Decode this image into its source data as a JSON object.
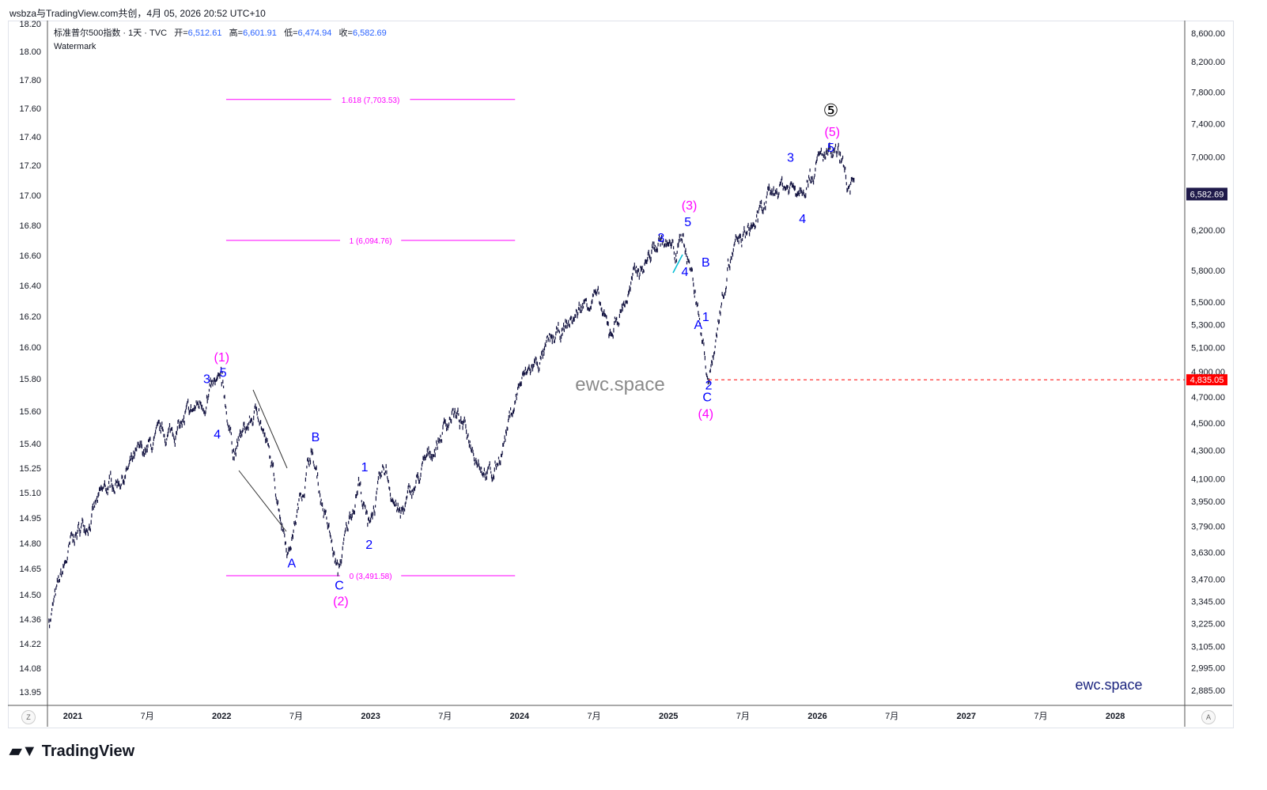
{
  "header": {
    "share_text": "wsbza与TradingView.com共创，4月 05, 2026 20:52 UTC+10"
  },
  "legend": {
    "symbol": "标准普尔500指数 · 1天 · TVC",
    "open_label": "开=",
    "open": "6,512.61",
    "high_label": "高=",
    "high": "6,601.91",
    "low_label": "低=",
    "low": "6,474.94",
    "close_label": "收=",
    "close": "6,582.69",
    "watermark_label": "Watermark"
  },
  "buttons": {
    "z": "Z",
    "a": "A"
  },
  "brand": "TradingView",
  "colors": {
    "candle": "#131340",
    "wave_blue": "#0000ff",
    "wave_magenta": "#ff00ff",
    "red": "#ff0000",
    "price_tag": "#1f1a4a"
  },
  "chart_data": {
    "type": "line",
    "title": "标准普尔500指数 · 1天 · TVC",
    "y_scale": "log",
    "ylim": [
      2800,
      8900
    ],
    "x_ticks": [
      "2021",
      "7月",
      "2022",
      "7月",
      "2023",
      "7月",
      "2024",
      "7月",
      "2025",
      "7月",
      "2026",
      "7月",
      "2027",
      "7月",
      "2028"
    ],
    "x_tick_dates": [
      2021,
      2021.5,
      2022,
      2022.5,
      2023,
      2023.5,
      2024,
      2024.5,
      2025,
      2025.5,
      2026,
      2026.5,
      2027,
      2027.5,
      2028
    ],
    "right_ticks": [
      "8,600.00",
      "8,200.00",
      "7,800.00",
      "7,400.00",
      "7,000.00",
      "6,200.00",
      "5,800.00",
      "5,500.00",
      "5,300.00",
      "5,100.00",
      "4,900.00",
      "4,700.00",
      "4,500.00",
      "4,300.00",
      "4,100.00",
      "3,950.00",
      "3,790.00",
      "3,630.00",
      "3,470.00",
      "3,345.00",
      "3,225.00",
      "3,105.00",
      "2,995.00",
      "2,885.00"
    ],
    "left_ticks": [
      "18.20",
      "18.00",
      "17.80",
      "17.60",
      "17.40",
      "17.20",
      "17.00",
      "16.80",
      "16.60",
      "16.40",
      "16.20",
      "16.00",
      "15.80",
      "15.60",
      "15.40",
      "15.25",
      "15.10",
      "14.95",
      "14.80",
      "14.65",
      "14.50",
      "14.36",
      "14.22",
      "14.08",
      "13.95"
    ],
    "last_price": "6,582.69",
    "marked_price": {
      "label": "4,835.05",
      "value": 4835.05,
      "from": 2025.27
    },
    "series": [
      {
        "name": "SPX",
        "points": [
          [
            2020.84,
            3240
          ],
          [
            2021.0,
            3700
          ],
          [
            2021.25,
            4050
          ],
          [
            2021.5,
            4300
          ],
          [
            2021.75,
            4500
          ],
          [
            2021.9,
            4700
          ],
          [
            2022.0,
            4800
          ],
          [
            2022.08,
            4300
          ],
          [
            2022.25,
            4600
          ],
          [
            2022.45,
            3650
          ],
          [
            2022.6,
            4300
          ],
          [
            2022.78,
            3500
          ],
          [
            2022.92,
            4100
          ],
          [
            2022.98,
            3800
          ],
          [
            2023.1,
            4150
          ],
          [
            2023.2,
            3850
          ],
          [
            2023.55,
            4600
          ],
          [
            2023.82,
            4100
          ],
          [
            2024.0,
            4800
          ],
          [
            2024.3,
            5250
          ],
          [
            2024.5,
            5600
          ],
          [
            2024.6,
            5200
          ],
          [
            2024.8,
            5800
          ],
          [
            2024.95,
            6100
          ],
          [
            2025.05,
            5950
          ],
          [
            2025.1,
            6150
          ],
          [
            2025.18,
            5600
          ],
          [
            2025.27,
            4835
          ],
          [
            2025.4,
            5900
          ],
          [
            2025.6,
            6300
          ],
          [
            2025.75,
            6700
          ],
          [
            2025.85,
            6650
          ],
          [
            2025.95,
            6850
          ],
          [
            2026.05,
            7000
          ],
          [
            2026.15,
            6950
          ],
          [
            2026.22,
            6600
          ],
          [
            2026.25,
            6582
          ]
        ]
      }
    ],
    "fib_levels": [
      {
        "label": "1.618 (7,703.53)",
        "value": 7703.53
      },
      {
        "label": "1 (6,094.76)",
        "value": 6094.76
      },
      {
        "label": "0 (3,491.58)",
        "value": 3491.58
      }
    ],
    "fib_range": [
      2022.03,
      2023.97
    ],
    "wave_labels": [
      {
        "text": "(1)",
        "color": "magenta",
        "date": 2022.0,
        "price": 5023
      },
      {
        "text": "3",
        "color": "blue",
        "date": 2021.9,
        "price": 4845
      },
      {
        "text": "5",
        "color": "blue",
        "date": 2022.01,
        "price": 4896
      },
      {
        "text": "4",
        "color": "blue",
        "date": 2021.97,
        "price": 4419
      },
      {
        "text": "A",
        "color": "blue",
        "date": 2022.47,
        "price": 3567
      },
      {
        "text": "B",
        "color": "blue",
        "date": 2022.63,
        "price": 4401
      },
      {
        "text": "C",
        "color": "blue",
        "date": 2022.79,
        "price": 3438
      },
      {
        "text": "(2)",
        "color": "magenta",
        "date": 2022.8,
        "price": 3349
      },
      {
        "text": "1",
        "color": "blue",
        "date": 2022.96,
        "price": 4187
      },
      {
        "text": "2",
        "color": "blue",
        "date": 2022.99,
        "price": 3681
      },
      {
        "text": "3",
        "color": "blue",
        "date": 2024.95,
        "price": 6127
      },
      {
        "text": "5",
        "color": "blue",
        "date": 2025.13,
        "price": 6290
      },
      {
        "text": "(3)",
        "color": "magenta",
        "date": 2025.14,
        "price": 6466
      },
      {
        "text": "4",
        "color": "blue",
        "date": 2025.11,
        "price": 5789
      },
      {
        "text": "B",
        "color": "blue",
        "date": 2025.25,
        "price": 5881
      },
      {
        "text": "A",
        "color": "blue",
        "date": 2025.2,
        "price": 5301
      },
      {
        "text": "1",
        "color": "blue",
        "date": 2025.25,
        "price": 5371
      },
      {
        "text": "2",
        "color": "blue",
        "date": 2025.27,
        "price": 4796
      },
      {
        "text": "C",
        "color": "blue",
        "date": 2025.26,
        "price": 4703
      },
      {
        "text": "(4)",
        "color": "magenta",
        "date": 2025.25,
        "price": 4575
      },
      {
        "text": "3",
        "color": "blue",
        "date": 2025.82,
        "price": 7000
      },
      {
        "text": "4",
        "color": "blue",
        "date": 2025.9,
        "price": 6323
      },
      {
        "text": "5",
        "color": "blue",
        "date": 2026.09,
        "price": 7119
      },
      {
        "text": "(5)",
        "color": "magenta",
        "date": 2026.1,
        "price": 7308
      },
      {
        "text": "⑤",
        "color": "black",
        "date": 2026.09,
        "price": 7553
      }
    ],
    "watermarks": [
      "ewc.space",
      "ewc.space"
    ]
  }
}
